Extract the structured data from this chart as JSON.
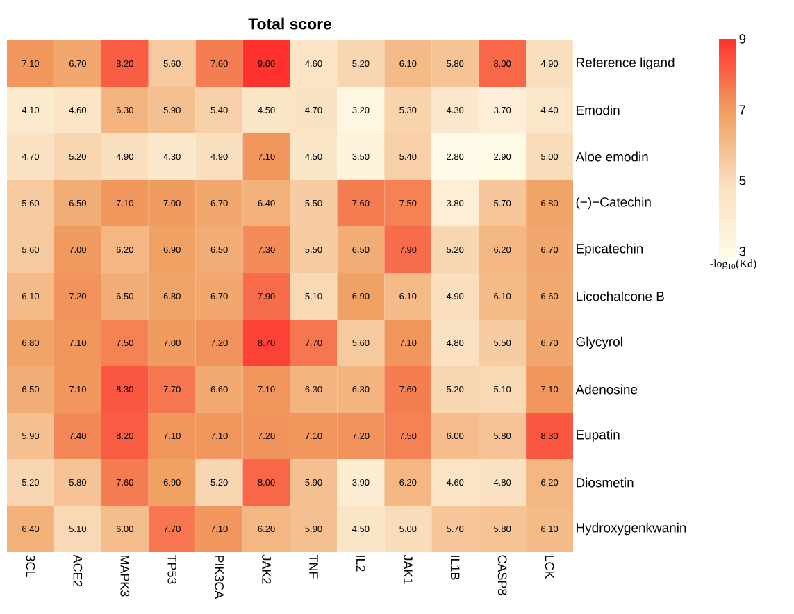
{
  "chart_data": {
    "type": "heatmap",
    "title": "Total score",
    "clabel": "-log$_{10}$(Kd)",
    "categories": [
      "3CL",
      "ACE2",
      "MAPK3",
      "TP53",
      "PIK3CA",
      "JAK2",
      "TNF",
      "IL2",
      "JAK1",
      "IL1B",
      "CASP8",
      "LCK"
    ],
    "y_categories": [
      "Reference ligand",
      "Emodin",
      "Aloe emodin",
      "(−)−Catechin",
      "Epicatechin",
      "Licochalcone B",
      "Glycyrol",
      "Adenosine",
      "Eupatin",
      "Diosmetin",
      "Hydroxygenkwanin"
    ],
    "cells": [
      [
        7.1,
        6.7,
        8.2,
        5.6,
        7.6,
        9.0,
        4.6,
        5.2,
        6.1,
        5.8,
        8.0,
        4.9
      ],
      [
        4.1,
        4.6,
        6.3,
        5.9,
        5.4,
        4.5,
        4.7,
        3.2,
        5.3,
        4.3,
        3.7,
        4.4
      ],
      [
        4.7,
        5.2,
        4.9,
        4.3,
        4.9,
        7.1,
        4.5,
        3.5,
        5.4,
        2.8,
        2.9,
        5.0
      ],
      [
        5.6,
        6.5,
        7.1,
        7.0,
        6.7,
        6.4,
        5.5,
        7.6,
        7.5,
        3.8,
        5.7,
        6.8
      ],
      [
        5.6,
        7.0,
        6.2,
        6.9,
        6.5,
        7.3,
        5.5,
        6.5,
        7.9,
        5.2,
        6.2,
        6.7
      ],
      [
        6.1,
        7.2,
        6.5,
        6.8,
        6.7,
        7.9,
        5.1,
        6.9,
        6.1,
        4.9,
        6.1,
        6.6
      ],
      [
        6.8,
        7.1,
        7.5,
        7.0,
        7.2,
        8.7,
        7.7,
        5.6,
        7.1,
        4.8,
        5.5,
        6.7
      ],
      [
        6.5,
        7.1,
        8.3,
        7.7,
        6.6,
        7.1,
        6.3,
        6.3,
        7.6,
        5.2,
        5.1,
        7.1
      ],
      [
        5.9,
        7.4,
        8.2,
        7.1,
        7.1,
        7.2,
        7.1,
        7.2,
        7.5,
        6.0,
        5.8,
        8.3
      ],
      [
        5.2,
        5.8,
        7.6,
        6.9,
        5.2,
        8.0,
        5.9,
        3.9,
        6.2,
        4.6,
        4.8,
        6.2
      ],
      [
        6.4,
        5.1,
        6.0,
        7.7,
        7.1,
        6.2,
        5.9,
        4.5,
        5.0,
        5.7,
        5.8,
        6.1
      ]
    ],
    "cell_labels": [
      [
        "7.10",
        "6.70",
        "8.20",
        "5.60",
        "7.60",
        "9.00",
        "4.60",
        "5.20",
        "6.10",
        "5.80",
        "8.00",
        "4.90"
      ],
      [
        "4.10",
        "4.60",
        "6.30",
        "5.90",
        "5.40",
        "4.50",
        "4.70",
        "3.20",
        "5.30",
        "4.30",
        "3.70",
        "4.40"
      ],
      [
        "4.70",
        "5.20",
        "4.90",
        "4.30",
        "4.90",
        "7.10",
        "4.50",
        "3.50",
        "5.40",
        "2.80",
        "2.90",
        "5.00"
      ],
      [
        "5.60",
        "6.50",
        "7.10",
        "7.00",
        "6.70",
        "6.40",
        "5.50",
        "7.60",
        "7.50",
        "3.80",
        "5.70",
        "6.80"
      ],
      [
        "5.60",
        "7.00",
        "6.20",
        "6.90",
        "6.50",
        "7.30",
        "5.50",
        "6.50",
        "7.90",
        "5.20",
        "6.20",
        "6.70"
      ],
      [
        "6.10",
        "7.20",
        "6.50",
        "6.80",
        "6.70",
        "7.90",
        "5.10",
        "6.90",
        "6.10",
        "4.90",
        "6.10",
        "6.60"
      ],
      [
        "6.80",
        "7.10",
        "7.50",
        "7.00",
        "7.20",
        "8.70",
        "7.70",
        "5.60",
        "7.10",
        "4.80",
        "5.50",
        "6.70"
      ],
      [
        "6.50",
        "7.10",
        "8.30",
        "7.70",
        "6.60",
        "7.10",
        "6.30",
        "6.30",
        "7.60",
        "5.20",
        "5.10",
        "7.10"
      ],
      [
        "5.90",
        "7.40",
        "8.20",
        "7.10",
        "7.10",
        "7.20",
        "7.10",
        "7.20",
        "7.50",
        "6.00",
        "5.80",
        "8.30"
      ],
      [
        "5.20",
        "5.80",
        "7.60",
        "6.90",
        "5.20",
        "8.00",
        "5.90",
        "3.90",
        "6.20",
        "4.60",
        "4.80",
        "6.20"
      ],
      [
        "6.40",
        "5.10",
        "6.00",
        "7.70",
        "7.10",
        "6.20",
        "5.90",
        "4.50",
        "5.00",
        "5.70",
        "5.80",
        "6.10"
      ]
    ],
    "clim": [
      2.8,
      9
    ],
    "cticks": [
      {
        "value": 3,
        "label": "3"
      },
      {
        "value": 5,
        "label": "5"
      },
      {
        "value": 7,
        "label": "7"
      },
      {
        "value": 9,
        "label": "9"
      }
    ]
  }
}
